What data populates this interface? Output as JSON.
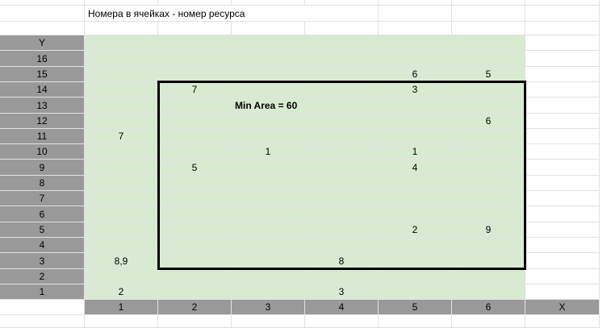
{
  "title": "Номера в ячейках - номер ресурса",
  "y_header": "Y",
  "x_header": "X",
  "y_labels": [
    "16",
    "15",
    "14",
    "13",
    "12",
    "11",
    "10",
    "9",
    "8",
    "7",
    "6",
    "5",
    "4",
    "3",
    "2",
    "1"
  ],
  "x_labels": [
    "1",
    "2",
    "3",
    "4",
    "5",
    "6"
  ],
  "grid": [
    [
      "",
      "",
      "",
      "",
      "",
      ""
    ],
    [
      "",
      "",
      "",
      "",
      "6",
      "5"
    ],
    [
      "",
      "7",
      "",
      "",
      "3",
      ""
    ],
    [
      "",
      "",
      "",
      "",
      "",
      ""
    ],
    [
      "",
      "",
      "",
      "",
      "",
      "6"
    ],
    [
      "7",
      "",
      "",
      "",
      "",
      ""
    ],
    [
      "",
      "",
      "1",
      "",
      "1",
      ""
    ],
    [
      "",
      "5",
      "",
      "",
      "4",
      ""
    ],
    [
      "",
      "",
      "",
      "",
      "",
      ""
    ],
    [
      "",
      "",
      "",
      "",
      "",
      ""
    ],
    [
      "",
      "",
      "",
      "",
      "",
      ""
    ],
    [
      "",
      "",
      "",
      "",
      "2",
      "9"
    ],
    [
      "",
      "",
      "",
      "",
      "",
      ""
    ],
    [
      "8,9",
      "",
      "",
      "8",
      "",
      ""
    ],
    [
      "",
      "",
      "",
      "",
      "",
      ""
    ],
    [
      "2",
      "",
      "",
      "3",
      "",
      ""
    ]
  ],
  "annotation": {
    "text": "Min Area = 60"
  },
  "colors": {
    "header_fill": "#999999",
    "data_fill": "#d9ead3",
    "grid_line": "#e2e2e2",
    "rect_border": "#000000"
  }
}
